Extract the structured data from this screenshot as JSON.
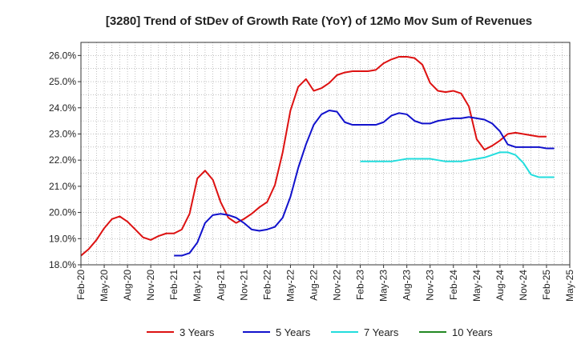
{
  "chart_data": {
    "type": "line",
    "title": "[3280]  Trend of StDev of Growth Rate (YoY) of 12Mo Mov Sum of Revenues",
    "xlabel": "",
    "ylabel": "",
    "ylim": [
      18.0,
      26.5
    ],
    "yticks": [
      18.0,
      19.0,
      20.0,
      21.0,
      22.0,
      23.0,
      24.0,
      25.0,
      26.0
    ],
    "ytick_labels": [
      "18.0%",
      "19.0%",
      "20.0%",
      "21.0%",
      "22.0%",
      "23.0%",
      "24.0%",
      "25.0%",
      "26.0%"
    ],
    "x_range_months": [
      "2020-02",
      "2025-05"
    ],
    "xtick_labels": [
      "Feb-20",
      "May-20",
      "Aug-20",
      "Nov-20",
      "Feb-21",
      "May-21",
      "Aug-21",
      "Nov-21",
      "Feb-22",
      "May-22",
      "Aug-22",
      "Nov-22",
      "Feb-23",
      "May-23",
      "Aug-23",
      "Nov-23",
      "Feb-24",
      "May-24",
      "Aug-24",
      "Nov-24",
      "Feb-25",
      "May-25"
    ],
    "grid": true,
    "legend_position": "bottom",
    "series": [
      {
        "name": "3 Years",
        "color": "#dd1111",
        "start": "2020-02",
        "values": [
          18.35,
          18.6,
          18.95,
          19.4,
          19.75,
          19.85,
          19.65,
          19.35,
          19.05,
          18.95,
          19.1,
          19.2,
          19.2,
          19.35,
          19.95,
          21.3,
          21.6,
          21.25,
          20.4,
          19.8,
          19.6,
          19.75,
          19.95,
          20.2,
          20.4,
          21.05,
          22.3,
          23.9,
          24.8,
          25.1,
          24.65,
          24.75,
          24.95,
          25.25,
          25.35,
          25.4,
          25.4,
          25.4,
          25.45,
          25.7,
          25.85,
          25.95,
          25.95,
          25.9,
          25.65,
          24.95,
          24.65,
          24.6,
          24.65,
          24.55,
          24.05,
          22.8,
          22.4,
          22.55,
          22.75,
          23.0,
          23.05,
          23.0,
          22.95,
          22.9,
          22.9
        ]
      },
      {
        "name": "5 Years",
        "color": "#1111cc",
        "start": "2021-02",
        "values": [
          18.35,
          18.35,
          18.45,
          18.85,
          19.6,
          19.9,
          19.95,
          19.9,
          19.8,
          19.6,
          19.35,
          19.3,
          19.35,
          19.45,
          19.8,
          20.6,
          21.7,
          22.6,
          23.35,
          23.75,
          23.9,
          23.85,
          23.45,
          23.35,
          23.35,
          23.35,
          23.35,
          23.45,
          23.7,
          23.8,
          23.75,
          23.5,
          23.4,
          23.4,
          23.5,
          23.55,
          23.6,
          23.6,
          23.65,
          23.6,
          23.55,
          23.4,
          23.1,
          22.6,
          22.5,
          22.5,
          22.5,
          22.5,
          22.45,
          22.45
        ]
      },
      {
        "name": "7 Years",
        "color": "#22dddd",
        "start": "2023-02",
        "values": [
          21.95,
          21.95,
          21.95,
          21.95,
          21.95,
          22.0,
          22.05,
          22.05,
          22.05,
          22.05,
          22.0,
          21.95,
          21.95,
          21.95,
          22.0,
          22.05,
          22.1,
          22.2,
          22.3,
          22.3,
          22.2,
          21.9,
          21.45,
          21.35,
          21.35,
          21.35
        ]
      },
      {
        "name": "10 Years",
        "color": "#228822",
        "start": "2020-02",
        "values": []
      }
    ]
  }
}
